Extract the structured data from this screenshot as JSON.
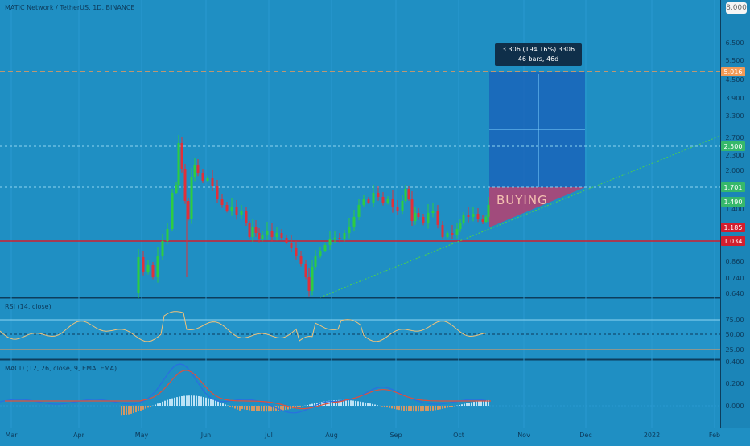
{
  "header": {
    "symbol_line": "MATIC Network / TetherUS, 1D, BINANCE",
    "top_right_value": "8.000"
  },
  "colors": {
    "background": "#1f8fc3",
    "up": "#2ecc40",
    "down": "#e0303a",
    "resistance": "#d21f2e",
    "target": "#f29a56",
    "trend": "#4cd14c",
    "profit_zone": "#1a5fb8",
    "loss_zone": "#b84070"
  },
  "price_axis": {
    "ticks": [
      "6.500",
      "5.500",
      "4.500",
      "3.900",
      "3.300",
      "2.700",
      "2.300",
      "2.000",
      "1.400",
      "0.860",
      "0.740",
      "0.640"
    ],
    "badges": [
      {
        "label": "5.016",
        "color": "#f29a56"
      },
      {
        "label": "2.500",
        "color": "#36b86b"
      },
      {
        "label": "1.701",
        "color": "#36b86b"
      },
      {
        "label": "1.490",
        "color": "#36b86b"
      },
      {
        "label": "1.185",
        "color": "#d21f2e"
      },
      {
        "label": "1.034",
        "color": "#d21f2e"
      }
    ]
  },
  "position_tool": {
    "info_line1": "3.306 (194.16%) 3306",
    "info_line2": "46 bars, 46d",
    "label": "BUYING"
  },
  "rsi": {
    "title": "RSI (14, close)",
    "ticks": [
      "75.00",
      "50.00",
      "25.00"
    ]
  },
  "macd": {
    "title": "MACD (12, 26, close, 9, EMA, EMA)",
    "ticks": [
      "0.400",
      "0.200",
      "0.000"
    ]
  },
  "time_axis": {
    "labels": [
      "Mar",
      "Apr",
      "May",
      "Jun",
      "Jul",
      "Aug",
      "Sep",
      "Oct",
      "Nov",
      "Dec",
      "2022",
      "Feb"
    ]
  },
  "chart_data": {
    "type": "candlestick",
    "price_levels": {
      "target": 5.016,
      "take_profit_line": 2.5,
      "entry_line": 1.701,
      "current": 1.49,
      "stop": 1.185,
      "resistance": 1.034
    }
  }
}
